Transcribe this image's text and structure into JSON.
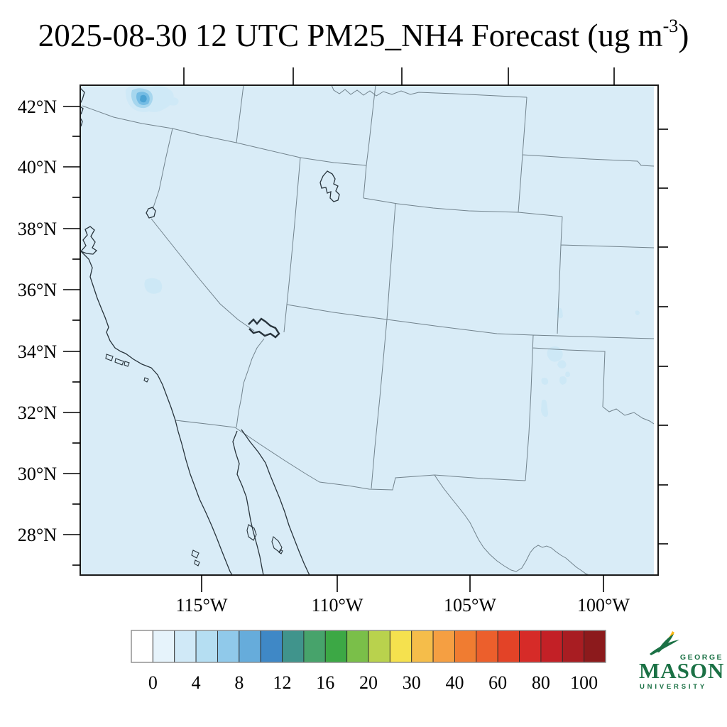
{
  "title": {
    "main": "2025-08-30 12 UTC PM25_NH4 Forecast (ug m",
    "sup": "-3",
    "end": ")"
  },
  "axes": {
    "lat_labels": [
      "42°N",
      "40°N",
      "38°N",
      "36°N",
      "34°N",
      "32°N",
      "30°N",
      "28°N"
    ],
    "lon_labels": [
      "115°W",
      "110°W",
      "105°W",
      "100°W"
    ]
  },
  "colorbar": {
    "tick_labels": [
      "0",
      "4",
      "8",
      "12",
      "16",
      "20",
      "30",
      "40",
      "60",
      "80",
      "100"
    ],
    "segment_colors": [
      "#ffffff",
      "#e6f3fb",
      "#d0e9f7",
      "#b5def2",
      "#90c9ea",
      "#66acdb",
      "#3f88c6",
      "#40948c",
      "#47a36b",
      "#3ca845",
      "#7abf49",
      "#b9d24d",
      "#f5e14e",
      "#f5bd4a",
      "#f59f42",
      "#f07c31",
      "#ec5f2c",
      "#e34327",
      "#d62b28",
      "#c32026",
      "#a81d22",
      "#8c1a1c"
    ]
  },
  "colors": {
    "map_bg": "#d9ecf7",
    "border": "#72838d",
    "coast": "#28343c",
    "frame": "#1a1a1a",
    "patch_light": "#cfe9f7",
    "patch_mid": "#a6d6ee",
    "patch_dark": "#74bce4",
    "patch_core": "#4ba3d4",
    "patch_faint": "#cde8f6",
    "logo_green": "#1b7145",
    "logo_gold": "#fdb714"
  },
  "logo": {
    "george": "GEORGE",
    "mason": "MASON",
    "university": "UNIVERSITY"
  },
  "chart_data": {
    "type": "heatmap",
    "title": "2025-08-30 12 UTC PM25_NH4 Forecast (ug m-3)",
    "variable": "PM25_NH4",
    "units": "ug m-3",
    "colorbar_tick_values": [
      0,
      4,
      8,
      12,
      16,
      20,
      30,
      40,
      60,
      80,
      100
    ],
    "x_tick_labels": [
      "115°W",
      "110°W",
      "105°W",
      "100°W"
    ],
    "y_tick_labels": [
      "42°N",
      "40°N",
      "38°N",
      "36°N",
      "34°N",
      "32°N",
      "30°N",
      "28°N"
    ],
    "field_summary": "PM25_NH4 near 0-2 ug/m3 over entire SW-US domain; small 2-10 ug/m3 plume at the NW Nevada / Oregon border and faint 2-4 ug/m3 spots in eastern California, eastern New Mexico and southeast Colorado"
  }
}
